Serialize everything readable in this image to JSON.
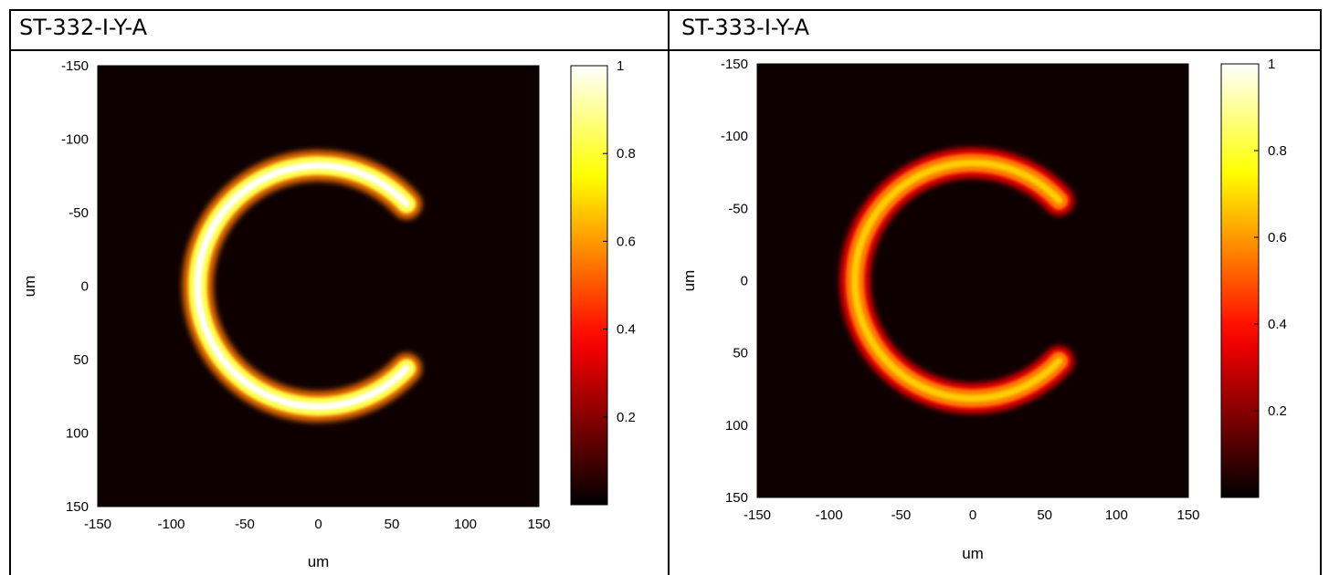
{
  "panels": [
    {
      "title": "ST-332-I-Y-A",
      "chart_data": {
        "type": "heatmap",
        "title": "",
        "xlabel": "um",
        "ylabel": "um",
        "xlim": [
          -150,
          150
        ],
        "ylim": [
          -150,
          150
        ],
        "y_reversed": true,
        "x_ticks": [
          "-150",
          "-100",
          "-50",
          "0",
          "50",
          "100",
          "150"
        ],
        "y_ticks": [
          "-150",
          "-100",
          "-50",
          "0",
          "50",
          "100",
          "150"
        ],
        "colorbar": {
          "min": 0,
          "max": 1,
          "ticks": [
            "1",
            "0.8",
            "0.6",
            "0.4",
            "0.2"
          ],
          "colormap": "hot"
        },
        "shape": {
          "kind": "ring-arc",
          "center": [
            0,
            0
          ],
          "radius_um": 82,
          "width_um": 11,
          "opening": "right",
          "gap_start_deg": -43,
          "gap_end_deg": 43,
          "peak_intensity": 1.0
        }
      }
    },
    {
      "title": "ST-333-I-Y-A",
      "chart_data": {
        "type": "heatmap",
        "title": "",
        "xlabel": "um",
        "ylabel": "um",
        "xlim": [
          -150,
          150
        ],
        "ylim": [
          -150,
          150
        ],
        "y_reversed": true,
        "x_ticks": [
          "-150",
          "-100",
          "-50",
          "0",
          "50",
          "100",
          "150"
        ],
        "y_ticks": [
          "-150",
          "-100",
          "-50",
          "0",
          "50",
          "100",
          "150"
        ],
        "colorbar": {
          "min": 0,
          "max": 1,
          "ticks": [
            "1",
            "0.8",
            "0.6",
            "0.4",
            "0.2"
          ],
          "colormap": "hot"
        },
        "shape": {
          "kind": "ring-arc",
          "center": [
            0,
            0
          ],
          "radius_um": 82,
          "width_um": 11,
          "opening": "right",
          "gap_start_deg": -43,
          "gap_end_deg": 43,
          "peak_intensity": 0.68
        }
      }
    }
  ]
}
